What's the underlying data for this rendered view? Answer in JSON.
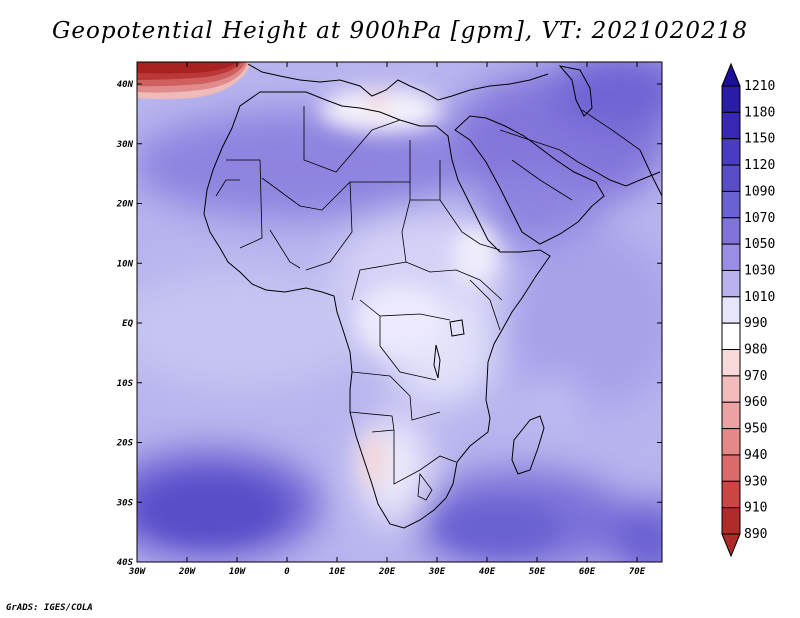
{
  "title": "Geopotential Height at 900hPa [gpm], VT: 2021020218",
  "credit": "GrADS: IGES/COLA",
  "lon_ticks": [
    "30W",
    "20W",
    "10W",
    "0",
    "10E",
    "20E",
    "30E",
    "40E",
    "50E",
    "60E",
    "70E"
  ],
  "lat_ticks": [
    "40N",
    "30N",
    "20N",
    "10N",
    "EQ",
    "10S",
    "20S",
    "30S",
    "40S"
  ],
  "colorbar": {
    "levels": [
      "1210",
      "1180",
      "1150",
      "1120",
      "1090",
      "1070",
      "1050",
      "1030",
      "1010",
      "990",
      "980",
      "970",
      "960",
      "950",
      "940",
      "930",
      "910",
      "890"
    ],
    "colors": [
      "#1c0f9a",
      "#2a1ba8",
      "#3826b4",
      "#4a3cc0",
      "#5a4ec8",
      "#6a62d2",
      "#8074da",
      "#9a8ee4",
      "#b8b2ee",
      "#e6e6fa",
      "#ffffff",
      "#f8dada",
      "#f2bcbc",
      "#eca2a2",
      "#e48888",
      "#dc6c6c",
      "#cc4444",
      "#b02a2a"
    ]
  }
}
